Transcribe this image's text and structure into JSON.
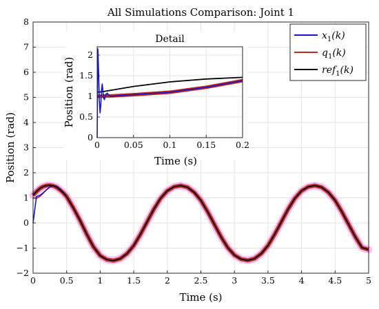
{
  "chart_data": [
    {
      "type": "line",
      "title": "All Simulations Comparison: Joint 1",
      "xlabel": "Time (s)",
      "ylabel": "Position (rad)",
      "xlim": [
        0,
        5
      ],
      "ylim": [
        -2,
        8
      ],
      "xticks": [
        "0",
        "0.5",
        "1",
        "1.5",
        "2",
        "2.5",
        "3",
        "3.5",
        "4",
        "4.5",
        "5"
      ],
      "yticks": [
        "-2",
        "-1",
        "0",
        "1",
        "2",
        "3",
        "4",
        "5",
        "6",
        "7",
        "8"
      ],
      "grid": true,
      "legend_position": "top-right",
      "series": [
        {
          "name": "x1(k)",
          "color": "#1414d0",
          "x": [
            0,
            0.05,
            0.1,
            0.15,
            0.2,
            0.25,
            0.3,
            0.35,
            0.4,
            0.45,
            0.5,
            0.6,
            0.7,
            0.8,
            0.9,
            1.0,
            1.1,
            1.2,
            1.3,
            1.4,
            1.5,
            1.6,
            1.7,
            1.8,
            1.9,
            2.0,
            2.1,
            2.2,
            2.3,
            2.4,
            2.5,
            2.6,
            2.7,
            2.8,
            2.9,
            3.0,
            3.1,
            3.2,
            3.3,
            3.4,
            3.5,
            3.6,
            3.7,
            3.8,
            3.9,
            4.0,
            4.1,
            4.2,
            4.3,
            4.4,
            4.5,
            4.6,
            4.7,
            4.8,
            4.9,
            5.0
          ],
          "y": [
            0.0,
            1.05,
            1.1,
            1.2,
            1.32,
            1.43,
            1.48,
            1.45,
            1.35,
            1.22,
            1.05,
            0.6,
            0.1,
            -0.45,
            -0.95,
            -1.3,
            -1.46,
            -1.5,
            -1.42,
            -1.22,
            -0.9,
            -0.45,
            0.05,
            0.55,
            0.98,
            1.28,
            1.44,
            1.49,
            1.42,
            1.22,
            0.9,
            0.45,
            -0.05,
            -0.55,
            -0.98,
            -1.28,
            -1.44,
            -1.49,
            -1.42,
            -1.22,
            -0.9,
            -0.45,
            0.05,
            0.55,
            0.98,
            1.28,
            1.44,
            1.49,
            1.42,
            1.22,
            0.9,
            0.45,
            -0.05,
            -0.55,
            -0.98,
            -1.06
          ]
        },
        {
          "name": "q1(k)",
          "color": "#c0261c",
          "x": [
            0,
            0.05,
            0.1,
            0.15,
            0.2,
            0.25,
            0.3,
            0.35,
            0.4,
            0.45,
            0.5,
            0.6,
            0.7,
            0.8,
            0.9,
            1.0,
            1.1,
            1.2,
            1.3,
            1.4,
            1.5,
            1.6,
            1.7,
            1.8,
            1.9,
            2.0,
            2.1,
            2.2,
            2.3,
            2.4,
            2.5,
            2.6,
            2.7,
            2.8,
            2.9,
            3.0,
            3.1,
            3.2,
            3.3,
            3.4,
            3.5,
            3.6,
            3.7,
            3.8,
            3.9,
            4.0,
            4.1,
            4.2,
            4.3,
            4.4,
            4.5,
            4.6,
            4.7,
            4.8,
            4.9,
            5.0
          ],
          "y": [
            1.0,
            0.98,
            1.05,
            1.18,
            1.32,
            1.43,
            1.48,
            1.45,
            1.35,
            1.22,
            1.05,
            0.6,
            0.1,
            -0.45,
            -0.95,
            -1.3,
            -1.46,
            -1.5,
            -1.42,
            -1.22,
            -0.9,
            -0.45,
            0.05,
            0.55,
            0.98,
            1.28,
            1.44,
            1.49,
            1.42,
            1.22,
            0.9,
            0.45,
            -0.05,
            -0.55,
            -0.98,
            -1.28,
            -1.44,
            -1.49,
            -1.42,
            -1.22,
            -0.9,
            -0.45,
            0.05,
            0.55,
            0.98,
            1.28,
            1.44,
            1.49,
            1.42,
            1.22,
            0.9,
            0.45,
            -0.05,
            -0.55,
            -0.98,
            -1.06
          ]
        },
        {
          "name": "ref1(k)",
          "color": "#000000",
          "x": [
            0,
            0.05,
            0.1,
            0.15,
            0.2,
            0.25,
            0.3,
            0.35,
            0.4,
            0.45,
            0.5,
            0.6,
            0.7,
            0.8,
            0.9,
            1.0,
            1.1,
            1.2,
            1.3,
            1.4,
            1.5,
            1.6,
            1.7,
            1.8,
            1.9,
            2.0,
            2.1,
            2.2,
            2.3,
            2.4,
            2.5,
            2.6,
            2.7,
            2.8,
            2.9,
            3.0,
            3.1,
            3.2,
            3.3,
            3.4,
            3.5,
            3.6,
            3.7,
            3.8,
            3.9,
            4.0,
            4.1,
            4.2,
            4.3,
            4.4,
            4.5,
            4.6,
            4.7,
            4.8,
            4.9,
            5.0
          ],
          "y": [
            1.1,
            1.25,
            1.37,
            1.45,
            1.49,
            1.5,
            1.48,
            1.42,
            1.32,
            1.2,
            1.05,
            0.6,
            0.1,
            -0.45,
            -0.95,
            -1.3,
            -1.46,
            -1.5,
            -1.42,
            -1.22,
            -0.9,
            -0.45,
            0.05,
            0.55,
            0.98,
            1.28,
            1.44,
            1.49,
            1.42,
            1.22,
            0.9,
            0.45,
            -0.05,
            -0.55,
            -0.98,
            -1.28,
            -1.44,
            -1.49,
            -1.42,
            -1.22,
            -0.9,
            -0.45,
            0.05,
            0.55,
            0.98,
            1.28,
            1.44,
            1.49,
            1.42,
            1.22,
            0.9,
            0.45,
            -0.05,
            -0.55,
            -0.98,
            -1.06
          ]
        }
      ]
    },
    {
      "type": "line",
      "title": "Detail",
      "xlabel": "Time (s)",
      "ylabel": "Position (rad)",
      "xlim": [
        0,
        0.2
      ],
      "ylim": [
        0,
        2.2
      ],
      "xticks": [
        "0",
        "0.05",
        "0.1",
        "0.15",
        "0.2"
      ],
      "yticks": [
        "0",
        "0.5",
        "1",
        "1.5",
        "2"
      ],
      "grid": true,
      "series": [
        {
          "name": "x1(k)",
          "color": "#1414d0",
          "x": [
            0,
            0.001,
            0.002,
            0.003,
            0.004,
            0.005,
            0.006,
            0.007,
            0.008,
            0.009,
            0.01,
            0.012,
            0.014,
            0.016,
            0.02,
            0.03,
            0.05,
            0.1,
            0.15,
            0.2
          ],
          "y": [
            0.0,
            2.15,
            1.6,
            0.9,
            0.6,
            0.8,
            1.15,
            1.3,
            1.1,
            0.95,
            0.92,
            1.05,
            1.08,
            1.02,
            1.0,
            1.02,
            1.04,
            1.1,
            1.22,
            1.38
          ]
        },
        {
          "name": "q1(k)",
          "color": "#c0261c",
          "x": [
            0,
            0.005,
            0.01,
            0.02,
            0.03,
            0.05,
            0.1,
            0.15,
            0.2
          ],
          "y": [
            1.0,
            1.0,
            1.01,
            1.01,
            1.02,
            1.04,
            1.1,
            1.22,
            1.38
          ]
        },
        {
          "name": "ref1(k)",
          "color": "#000000",
          "x": [
            0,
            0.01,
            0.02,
            0.05,
            0.1,
            0.15,
            0.2
          ],
          "y": [
            1.1,
            1.12,
            1.15,
            1.24,
            1.35,
            1.42,
            1.46
          ]
        }
      ]
    }
  ],
  "legend": {
    "items": [
      {
        "base": "x",
        "sub": "1",
        "rest": "(k)",
        "color": "#1414d0"
      },
      {
        "base": "q",
        "sub": "1",
        "rest": "(k)",
        "color": "#c0261c"
      },
      {
        "base": "ref",
        "sub": "1",
        "rest": "(k)",
        "color": "#000000"
      }
    ]
  },
  "colors": {
    "halo": "#f08cf0",
    "thick_band": "#c0261c"
  }
}
